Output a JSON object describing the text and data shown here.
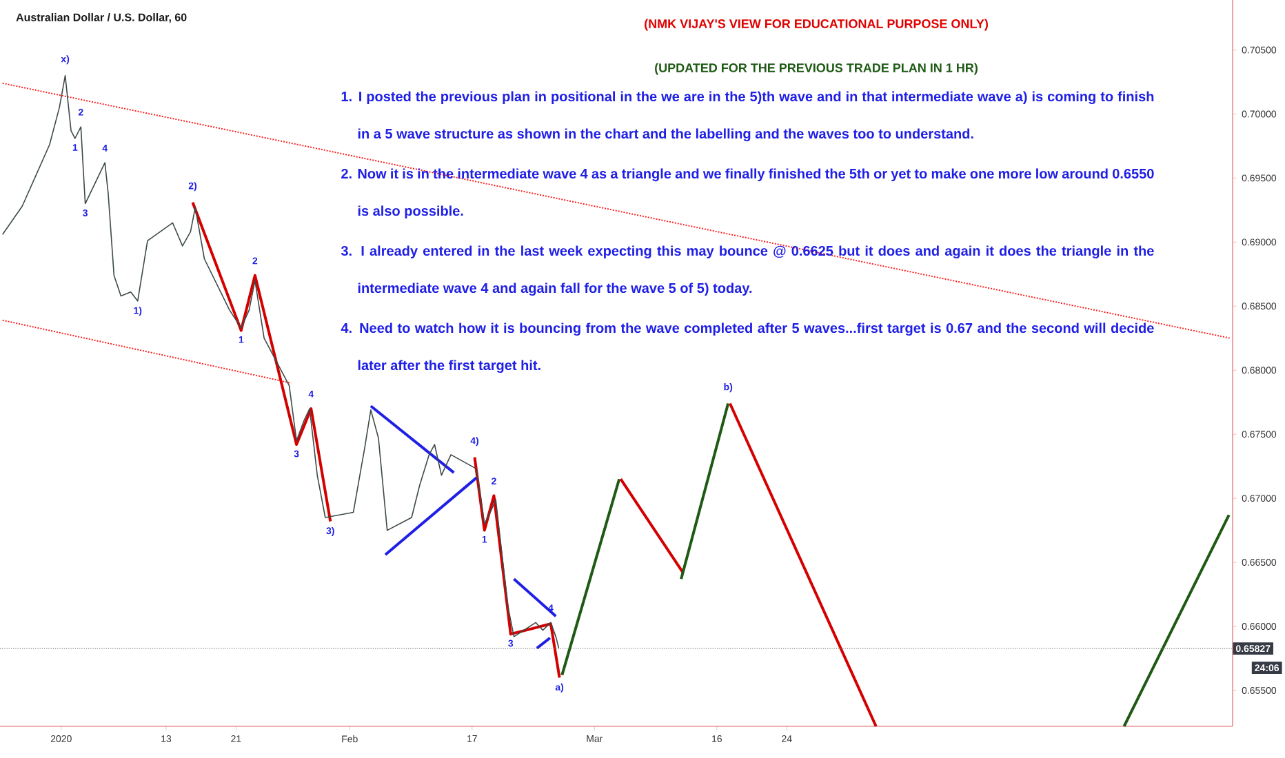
{
  "chart_data": {
    "type": "line",
    "title": "Australian Dollar / U.S. Dollar, 60",
    "subtitle": "(NMK VIJAY'S VIEW FOR EDUCATIONAL PURPOSE ONLY)",
    "xlim": [
      "2019-12-25T00:00",
      "2020-05-14T00:00"
    ],
    "xticks": [
      {
        "value": "2020-01-01",
        "label": "2020"
      },
      {
        "value": "2020-01-13",
        "label": "13"
      },
      {
        "value": "2020-01-21",
        "label": "21"
      },
      {
        "value": "2020-02-03",
        "label": "Feb"
      },
      {
        "value": "2020-02-17",
        "label": "17"
      },
      {
        "value": "2020-03-02",
        "label": "Mar"
      },
      {
        "value": "2020-03-16",
        "label": "16"
      },
      {
        "value": "2020-03-24",
        "label": "24"
      }
    ],
    "ylim": [
      0.6522,
      0.7089
    ],
    "yticks": [
      {
        "value": 0.655,
        "label": "0.65500"
      },
      {
        "value": 0.66,
        "label": "0.66000"
      },
      {
        "value": 0.665,
        "label": "0.66500"
      },
      {
        "value": 0.67,
        "label": "0.67000"
      },
      {
        "value": 0.675,
        "label": "0.67500"
      },
      {
        "value": 0.68,
        "label": "0.68000"
      },
      {
        "value": 0.685,
        "label": "0.68500"
      },
      {
        "value": 0.69,
        "label": "0.69000"
      },
      {
        "value": 0.695,
        "label": "0.69500"
      },
      {
        "value": 0.7,
        "label": "0.70000"
      },
      {
        "value": 0.705,
        "label": "0.70500"
      }
    ],
    "grid": false,
    "series": [
      {
        "color": "#3d4a48",
        "line_style": "solid",
        "x": [
          "2019-12-25T07:00",
          "2019-12-26T10:00",
          "2019-12-27T13:00",
          "2019-12-30T16:00",
          "2019-12-31T19:00",
          "2020-01-01T11:00",
          "2020-01-02T03:00",
          "2020-01-02T14:00",
          "2020-01-03T06:00",
          "2020-01-03T18:00",
          "2020-01-06T00:00",
          "2020-01-06T09:00",
          "2020-01-07T01:00",
          "2020-01-07T20:00",
          "2020-01-08T23:00",
          "2020-01-09T18:00",
          "2020-01-10T21:00",
          "2020-01-13T18:00",
          "2020-01-14T21:00",
          "2020-01-15T19:00",
          "2020-01-16T08:00",
          "2020-01-17T09:00",
          "2020-01-20T06:00",
          "2020-01-21T14:00",
          "2020-01-22T12:00",
          "2020-01-23T04:00",
          "2020-01-24T05:00",
          "2020-01-27T02:00",
          "2020-01-27T22:00",
          "2020-01-28T19:00",
          "2020-01-29T10:00",
          "2020-01-30T07:00",
          "2020-01-31T05:00",
          "2020-02-03T10:00",
          "2020-02-04T07:00",
          "2020-02-04T17:00",
          "2020-02-05T10:00",
          "2020-02-06T07:00",
          "2020-02-07T07:00",
          "2020-02-10T02:00",
          "2020-02-11T00:00",
          "2020-02-12T02:00",
          "2020-02-12T17:00",
          "2020-02-13T12:00",
          "2020-02-14T14:00",
          "2020-02-17T12:00",
          "2020-02-18T10:00",
          "2020-02-19T05:00",
          "2020-02-19T17:00",
          "2020-02-20T07:00",
          "2020-02-21T02:00",
          "2020-02-21T19:00",
          "2020-02-24T07:00",
          "2020-02-25T02:00",
          "2020-02-26T00:00",
          "2020-02-26T14:00",
          "2020-02-26T22:00"
        ],
        "values": [
          0.6906,
          0.6917,
          0.6928,
          0.6976,
          0.7005,
          0.703,
          0.6987,
          0.6981,
          0.699,
          0.693,
          0.6962,
          0.6938,
          0.6874,
          0.6858,
          0.6861,
          0.6854,
          0.6901,
          0.6915,
          0.6897,
          0.6908,
          0.6927,
          0.6887,
          0.6847,
          0.6833,
          0.6847,
          0.687,
          0.6825,
          0.6788,
          0.6745,
          0.6761,
          0.677,
          0.6718,
          0.6685,
          0.6689,
          0.6723,
          0.6739,
          0.6769,
          0.6747,
          0.6675,
          0.6685,
          0.671,
          0.6734,
          0.6742,
          0.6718,
          0.6734,
          0.6723,
          0.668,
          0.6691,
          0.6699,
          0.6664,
          0.6616,
          0.6592,
          0.6603,
          0.6597,
          0.6603,
          0.6592,
          0.6583
        ]
      },
      {
        "color": "#ff2020",
        "line_style": "dotted",
        "x": [
          "2019-12-25T07:00",
          "2020-05-13T17:00"
        ],
        "values": [
          0.7024,
          0.6825
        ]
      },
      {
        "color": "#ff2020",
        "line_style": "dotted",
        "x": [
          "2019-12-25T07:00",
          "2020-01-27T07:00"
        ],
        "values": [
          0.6839,
          0.679
        ]
      },
      {
        "color": "#d40000",
        "line_style": "solid",
        "x": [
          "2020-01-16T01:00",
          "2020-01-21T14:00",
          "2020-01-23T04:00",
          "2020-01-27T22:00",
          "2020-01-29T14:00",
          "2020-01-31T19:00"
        ],
        "values": [
          0.6931,
          0.6831,
          0.6874,
          0.6742,
          0.677,
          0.6682
        ]
      },
      {
        "color": "#d40000",
        "line_style": "solid",
        "x": [
          "2020-02-17T07:00",
          "2020-02-18T10:00",
          "2020-02-19T12:00",
          "2020-02-21T10:00",
          "2020-02-26T00:00",
          "2020-02-27T00:00"
        ],
        "values": [
          0.6732,
          0.6675,
          0.6702,
          0.6594,
          0.6602,
          0.656
        ]
      },
      {
        "color": "#1f1fe6",
        "line_style": "solid",
        "x": [
          "2020-02-05T10:00",
          "2020-02-14T22:00"
        ],
        "values": [
          0.6772,
          0.672
        ]
      },
      {
        "color": "#1f1fe6",
        "line_style": "solid",
        "x": [
          "2020-02-07T02:00",
          "2020-02-17T12:00"
        ],
        "values": [
          0.6656,
          0.6716
        ]
      },
      {
        "color": "#1f1fe6",
        "line_style": "solid",
        "x": [
          "2020-02-21T19:00",
          "2020-02-26T14:00"
        ],
        "values": [
          0.6637,
          0.6608
        ]
      },
      {
        "color": "#1f1fe6",
        "line_style": "solid",
        "x": [
          "2020-02-24T10:00",
          "2020-02-25T22:00"
        ],
        "values": [
          0.6583,
          0.6591
        ]
      },
      {
        "color": "#1e5a14",
        "line_style": "solid",
        "x": [
          "2020-02-27T07:00",
          "2020-03-04T20:00"
        ],
        "values": [
          0.6562,
          0.6715
        ]
      },
      {
        "color": "#d40000",
        "line_style": "solid",
        "x": [
          "2020-03-05T00:00",
          "2020-03-12T03:00"
        ],
        "values": [
          0.6715,
          0.6642
        ]
      },
      {
        "color": "#1e5a14",
        "line_style": "solid",
        "x": [
          "2020-03-11T22:00",
          "2020-03-17T07:00"
        ],
        "values": [
          0.6637,
          0.6774
        ]
      },
      {
        "color": "#d40000",
        "line_style": "solid",
        "x": [
          "2020-03-17T12:00",
          "2020-04-03T05:00"
        ],
        "values": [
          0.6774,
          0.6522
        ]
      },
      {
        "color": "#1e5a14",
        "line_style": "solid",
        "x": [
          "2020-05-01T14:00",
          "2020-05-13T14:00"
        ],
        "values": [
          0.6522,
          0.6687
        ]
      }
    ],
    "ref_lines": [
      {
        "axis": "y",
        "value": 0.65827,
        "label": "0.65827",
        "color": "#808080",
        "line_style": "dotted"
      }
    ],
    "annotations": [
      "(UPDATED FOR THE PREVIOUS TRADE PLAN IN 1 HR)",
      "1. I posted the previous plan in positional in the we are in the 5)th wave and in that intermediate wave a) is coming to finish in a 5 wave structure as shown in the chart and the labelling and the waves too to understand.",
      "2. Now it is in the intermediate wave 4 as a triangle and we finally finished the 5th or yet to make one more low around 0.6550 is also possible.",
      "3. I already entered in the last week expecting this may bounce @ 0.6625 but it does and again it does the triangle in the intermediate wave 4 and again fall  for the wave 5 of 5) today.",
      "4. Need to watch how it is bouncing from the wave completed after 5 waves...first target is 0.67 and the second will decide later after the first target hit.",
      "24:06",
      {
        "text": "x)",
        "x": "2020-01-01T11:00",
        "y": 0.703
      },
      {
        "text": "1",
        "x": "2020-01-02T14:00",
        "y": 0.6981
      },
      {
        "text": "2",
        "x": "2020-01-03T06:00",
        "y": 0.699
      },
      {
        "text": "4",
        "x": "2020-01-06T00:00",
        "y": 0.6962
      },
      {
        "text": "3",
        "x": "2020-01-03T18:00",
        "y": 0.693
      },
      {
        "text": "2)",
        "x": "2020-01-16T01:00",
        "y": 0.6931
      },
      {
        "text": "1)",
        "x": "2020-01-09T18:00",
        "y": 0.6854
      },
      {
        "text": "2",
        "x": "2020-01-23T04:00",
        "y": 0.6874
      },
      {
        "text": "1",
        "x": "2020-01-21T14:00",
        "y": 0.6831
      },
      {
        "text": "4",
        "x": "2020-01-29T14:00",
        "y": 0.677
      },
      {
        "text": "3",
        "x": "2020-01-27T22:00",
        "y": 0.6742
      },
      {
        "text": "3)",
        "x": "2020-01-31T19:00",
        "y": 0.6682
      },
      {
        "text": "4)",
        "x": "2020-02-17T07:00",
        "y": 0.6732
      },
      {
        "text": "2",
        "x": "2020-02-19T12:00",
        "y": 0.6702
      },
      {
        "text": "1",
        "x": "2020-02-18T10:00",
        "y": 0.6675
      },
      {
        "text": "3",
        "x": "2020-02-21T10:00",
        "y": 0.6594
      },
      {
        "text": "4",
        "x": "2020-02-26T00:00",
        "y": 0.6603
      },
      {
        "text": "a)",
        "x": "2020-02-27T00:00",
        "y": 0.656
      },
      {
        "text": "b)",
        "x": "2020-03-17T07:00",
        "y": 0.6774
      }
    ]
  }
}
